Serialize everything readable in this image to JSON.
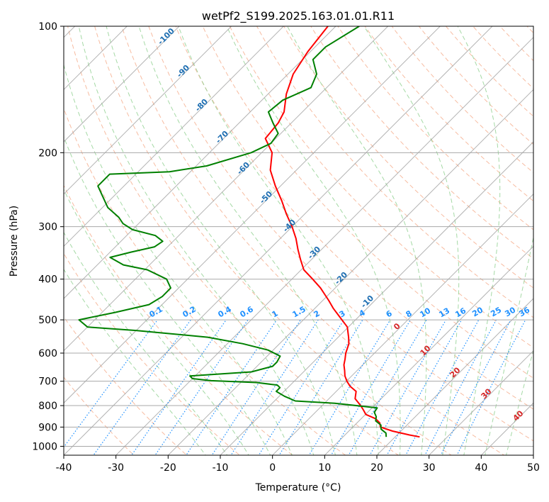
{
  "chart_data": {
    "type": "line",
    "title": "wetPf2_S199.2025.163.01.01.R11",
    "xlabel": "Temperature (°C)",
    "ylabel": "Pressure (hPa)",
    "xlim": [
      -40,
      50
    ],
    "ylim": [
      1050,
      100
    ],
    "y_scale": "log",
    "skew": 45,
    "grid": true,
    "x_ticks": [
      -40,
      -30,
      -20,
      -10,
      0,
      10,
      20,
      30,
      40,
      50
    ],
    "y_ticks": [
      100,
      200,
      300,
      400,
      500,
      600,
      700,
      800,
      900,
      1000
    ],
    "series": [
      {
        "color": "#ff0000",
        "points": [
          [
            950,
            24.7
          ],
          [
            940,
            22.4
          ],
          [
            920,
            18.4
          ],
          [
            900,
            15.3
          ],
          [
            880,
            14.4
          ],
          [
            860,
            12.8
          ],
          [
            840,
            10.1
          ],
          [
            820,
            8.8
          ],
          [
            800,
            7.4
          ],
          [
            770,
            5.0
          ],
          [
            740,
            3.8
          ],
          [
            720,
            1.7
          ],
          [
            700,
            0.1
          ],
          [
            680,
            -1.3
          ],
          [
            660,
            -2.4
          ],
          [
            640,
            -3.6
          ],
          [
            620,
            -4.5
          ],
          [
            600,
            -5.5
          ],
          [
            570,
            -6.7
          ],
          [
            550,
            -8.0
          ],
          [
            520,
            -10.2
          ],
          [
            500,
            -12.6
          ],
          [
            470,
            -16.4
          ],
          [
            450,
            -18.8
          ],
          [
            420,
            -22.8
          ],
          [
            400,
            -26.0
          ],
          [
            380,
            -29.5
          ],
          [
            360,
            -32.0
          ],
          [
            340,
            -34.5
          ],
          [
            320,
            -37.0
          ],
          [
            300,
            -40.0
          ],
          [
            280,
            -43.5
          ],
          [
            260,
            -47.0
          ],
          [
            240,
            -51.0
          ],
          [
            220,
            -55.0
          ],
          [
            200,
            -58.0
          ],
          [
            185,
            -62.0
          ],
          [
            170,
            -62.5
          ],
          [
            160,
            -63.5
          ],
          [
            145,
            -66.5
          ],
          [
            130,
            -69.0
          ],
          [
            115,
            -70.5
          ],
          [
            100,
            -71.5
          ]
        ]
      },
      {
        "color": "#008000",
        "points": [
          [
            950,
            18.3
          ],
          [
            930,
            17.5
          ],
          [
            910,
            15.8
          ],
          [
            890,
            15.0
          ],
          [
            870,
            13.2
          ],
          [
            850,
            12.5
          ],
          [
            830,
            11.3
          ],
          [
            810,
            11.0
          ],
          [
            790,
            2.0
          ],
          [
            780,
            -6.0
          ],
          [
            760,
            -9.0
          ],
          [
            740,
            -11.5
          ],
          [
            725,
            -11.5
          ],
          [
            715,
            -12.5
          ],
          [
            705,
            -17.0
          ],
          [
            698,
            -26.0
          ],
          [
            690,
            -30.0
          ],
          [
            680,
            -31.0
          ],
          [
            665,
            -20.0
          ],
          [
            645,
            -17.0
          ],
          [
            630,
            -17.0
          ],
          [
            610,
            -17.5
          ],
          [
            590,
            -21.0
          ],
          [
            570,
            -27.0
          ],
          [
            550,
            -35.0
          ],
          [
            530,
            -50.0
          ],
          [
            520,
            -60.0
          ],
          [
            500,
            -63.0
          ],
          [
            480,
            -57.5
          ],
          [
            460,
            -52.5
          ],
          [
            440,
            -51.5
          ],
          [
            420,
            -51.5
          ],
          [
            400,
            -54.0
          ],
          [
            380,
            -59.5
          ],
          [
            370,
            -65.0
          ],
          [
            355,
            -69.0
          ],
          [
            345,
            -66.0
          ],
          [
            335,
            -62.5
          ],
          [
            325,
            -62.0
          ],
          [
            315,
            -64.5
          ],
          [
            305,
            -70.0
          ],
          [
            295,
            -73.0
          ],
          [
            285,
            -75.0
          ],
          [
            270,
            -79.0
          ],
          [
            240,
            -85.0
          ],
          [
            225,
            -85.0
          ],
          [
            222,
            -74.0
          ],
          [
            215,
            -68.0
          ],
          [
            200,
            -62.0
          ],
          [
            190,
            -60.0
          ],
          [
            180,
            -60.5
          ],
          [
            170,
            -63.5
          ],
          [
            160,
            -66.5
          ],
          [
            150,
            -66.0
          ],
          [
            140,
            -63.0
          ],
          [
            130,
            -64.5
          ],
          [
            120,
            -68.0
          ],
          [
            112,
            -68.0
          ],
          [
            100,
            -65.5
          ]
        ]
      }
    ],
    "isotherm_labels": [
      "-100",
      "-90",
      "-80",
      "-70",
      "-60",
      "-50",
      "-40",
      "-30",
      "-20",
      "-10"
    ],
    "mixing_ratio_labels": [
      "0.1",
      "0.2",
      "0.4",
      "0.6",
      "1",
      "1.5",
      "2",
      "3",
      "4",
      "6",
      "8",
      "10",
      "13",
      "16",
      "20",
      "25",
      "30",
      "36"
    ],
    "moist_adiabat_labels": [
      "0",
      "10",
      "20",
      "30",
      "40"
    ],
    "colors": {
      "temperature": "#ff0000",
      "dewpoint": "#008000",
      "isotherm": "#a0a0a0",
      "dry_adiabat": "#f4a582",
      "moist_adiabat": "#8fd08f",
      "mixing_ratio": "#1e90ff",
      "dry_label": "#1f6fb2",
      "moist_label": "#d62728"
    }
  }
}
